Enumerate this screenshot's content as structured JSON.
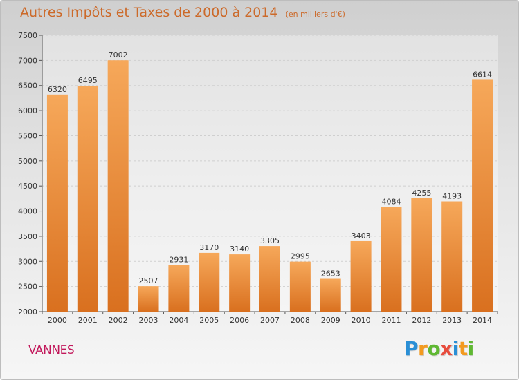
{
  "title": "Autres Impôts et Taxes de 2000 à 2014",
  "unit": "(en milliers d'€)",
  "city": "VANNES",
  "logo": {
    "letters": [
      "P",
      "r",
      "o",
      "x",
      "i",
      "t",
      "i"
    ],
    "colors": [
      "#2a8fd6",
      "#f39a1f",
      "#5fb832",
      "#e84c3d",
      "#2a8fd6",
      "#f39a1f",
      "#5fb832"
    ]
  },
  "colors": {
    "bar_top": "#f6a85a",
    "bar_bottom": "#d9701f",
    "title": "#cc6a2a",
    "city": "#c2185b"
  },
  "chart_data": {
    "type": "bar",
    "categories": [
      "2000",
      "2001",
      "2002",
      "2003",
      "2004",
      "2005",
      "2006",
      "2007",
      "2008",
      "2009",
      "2010",
      "2011",
      "2012",
      "2013",
      "2014"
    ],
    "values": [
      6320,
      6495,
      7002,
      2507,
      2931,
      3170,
      3140,
      3305,
      2995,
      2653,
      3403,
      4084,
      4255,
      4193,
      6614
    ],
    "ylim": [
      2000,
      7500
    ],
    "yticks": [
      2000,
      2500,
      3000,
      3500,
      4000,
      4500,
      5000,
      5500,
      6000,
      6500,
      7000,
      7500
    ],
    "grid": true
  }
}
